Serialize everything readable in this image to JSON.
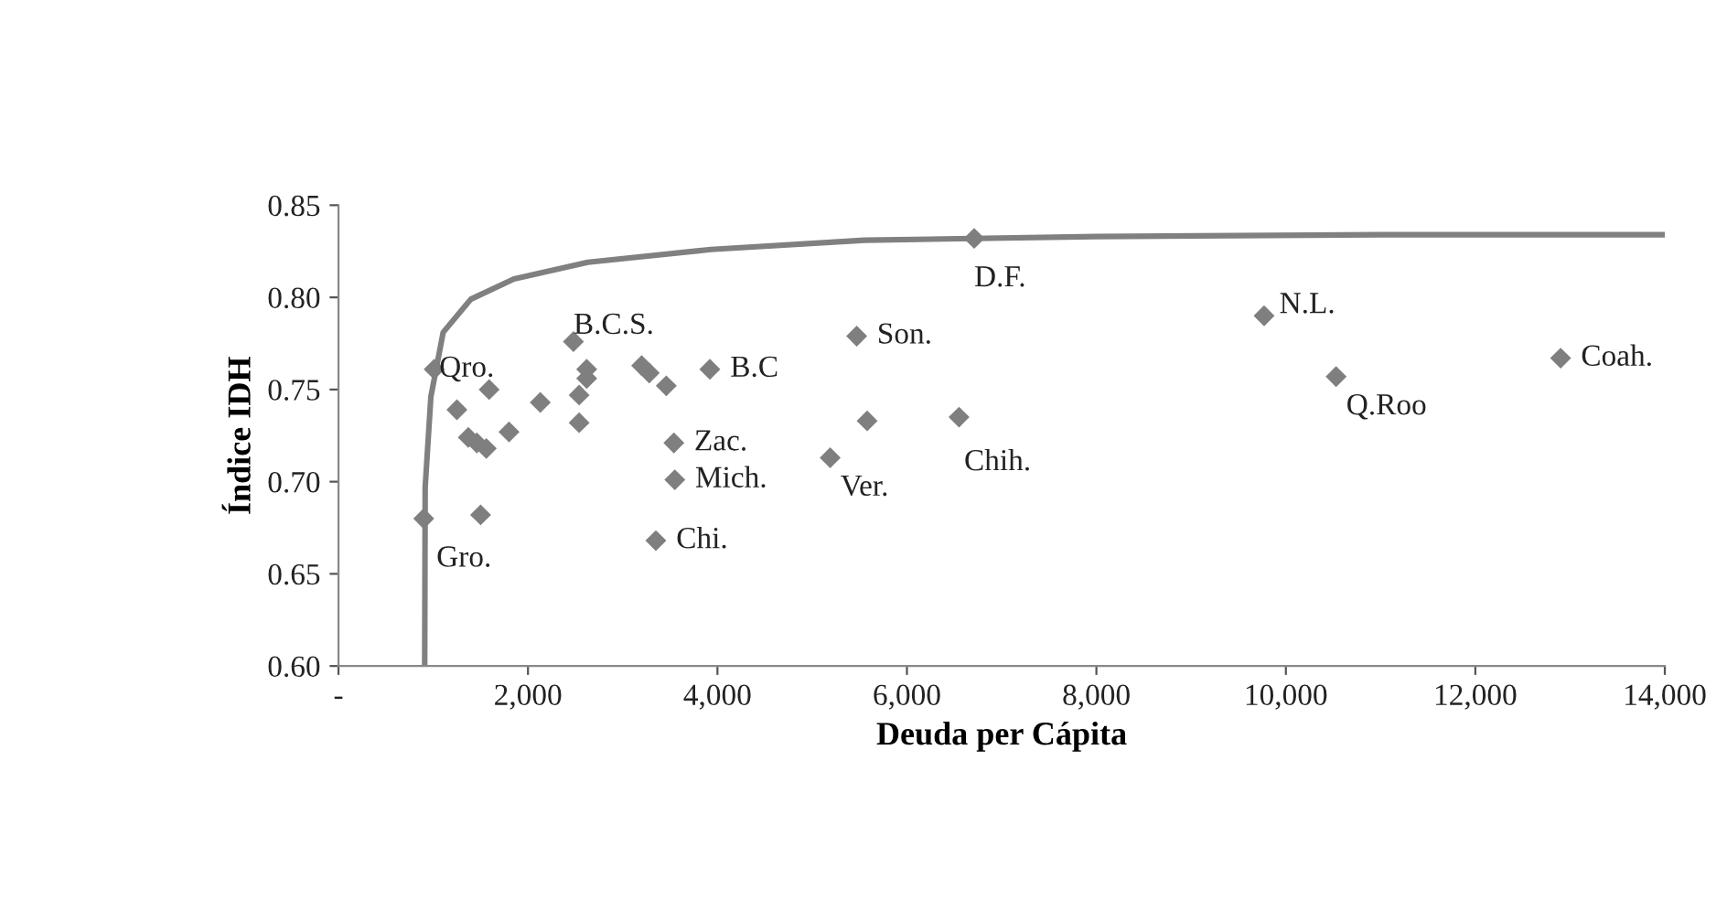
{
  "chart_data": {
    "type": "scatter",
    "xlabel": "Deuda per Cápita",
    "ylabel": "Índice IDH",
    "xlim": [
      0,
      14000
    ],
    "ylim": [
      0.6,
      0.85
    ],
    "xticks": [
      {
        "value": 0,
        "label": "-"
      },
      {
        "value": 2000,
        "label": "2,000"
      },
      {
        "value": 4000,
        "label": "4,000"
      },
      {
        "value": 6000,
        "label": "6,000"
      },
      {
        "value": 8000,
        "label": "8,000"
      },
      {
        "value": 10000,
        "label": "10,000"
      },
      {
        "value": 12000,
        "label": "12,000"
      },
      {
        "value": 14000,
        "label": "14,000"
      }
    ],
    "yticks": [
      {
        "value": 0.6,
        "label": "0.60"
      },
      {
        "value": 0.65,
        "label": "0.65"
      },
      {
        "value": 0.7,
        "label": "0.70"
      },
      {
        "value": 0.75,
        "label": "0.75"
      },
      {
        "value": 0.8,
        "label": "0.80"
      },
      {
        "value": 0.85,
        "label": "0.85"
      }
    ],
    "grid": false,
    "legend": false,
    "series": [
      {
        "type": "line",
        "color": "#808080",
        "marker": "none",
        "line_style": "solid",
        "x": [
          910,
          915,
          975,
          1105,
          1397,
          1852,
          2632,
          3931,
          5555,
          8000,
          11000,
          14000
        ],
        "values": [
          0.6,
          0.697,
          0.746,
          0.781,
          0.799,
          0.81,
          0.819,
          0.826,
          0.831,
          0.833,
          0.834,
          0.834
        ]
      },
      {
        "color": "#7f7f7f",
        "marker": "diamond",
        "x": [
          900,
          1010,
          1250,
          1370,
          1460,
          1560,
          1500,
          1590,
          1800,
          2130,
          2480,
          2620,
          2620,
          2540,
          2540,
          3200,
          3280,
          3460,
          3540,
          3550,
          3350,
          3920,
          5470,
          5580,
          5190,
          6710,
          6550,
          9770,
          10530,
          12900
        ],
        "values": [
          0.68,
          0.761,
          0.739,
          0.724,
          0.721,
          0.718,
          0.682,
          0.75,
          0.727,
          0.743,
          0.776,
          0.761,
          0.756,
          0.747,
          0.732,
          0.763,
          0.759,
          0.752,
          0.721,
          0.701,
          0.668,
          0.761,
          0.779,
          0.733,
          0.713,
          0.832,
          0.735,
          0.79,
          0.757,
          0.767
        ]
      }
    ],
    "annotations": [
      {
        "text": "Gro.",
        "x": 900,
        "y": 0.68
      },
      {
        "text": "Qro.",
        "x": 1010,
        "y": 0.761
      },
      {
        "text": "B.C.S.",
        "x": 2480,
        "y": 0.776
      },
      {
        "text": "B.C",
        "x": 3920,
        "y": 0.761
      },
      {
        "text": "Zac.",
        "x": 3540,
        "y": 0.721
      },
      {
        "text": "Mich.",
        "x": 3550,
        "y": 0.701
      },
      {
        "text": "Chi.",
        "x": 3350,
        "y": 0.668
      },
      {
        "text": "Son.",
        "x": 5470,
        "y": 0.779
      },
      {
        "text": "Ver.",
        "x": 5190,
        "y": 0.713
      },
      {
        "text": "D.F.",
        "x": 6710,
        "y": 0.832
      },
      {
        "text": "Chih.",
        "x": 6550,
        "y": 0.735
      },
      {
        "text": "N.L.",
        "x": 9770,
        "y": 0.79
      },
      {
        "text": "Q.Roo",
        "x": 10530,
        "y": 0.757
      },
      {
        "text": "Coah.",
        "x": 12900,
        "y": 0.767
      }
    ]
  }
}
